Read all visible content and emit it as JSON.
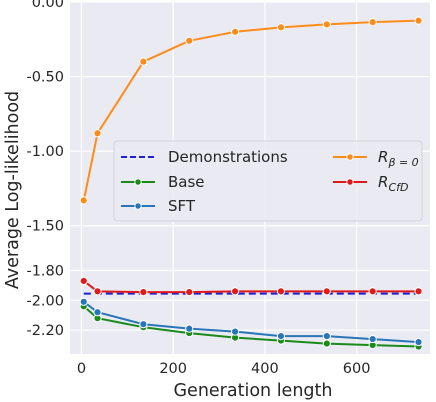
{
  "chart_data": {
    "type": "line",
    "xlabel": "Generation length",
    "ylabel": "Average Log-likelihood",
    "xlim": [
      -25,
      760
    ],
    "ylim": [
      -2.36,
      0.0
    ],
    "xticks": [
      0,
      200,
      400,
      600
    ],
    "yticks": [
      0.0,
      -0.5,
      -1.0,
      -1.5,
      -1.8,
      -2.0,
      -2.2
    ],
    "ytick_labels": [
      "0.00",
      "-0.50",
      "-1.00",
      "-1.50",
      "-1.80",
      "-2.00",
      "-2.20"
    ],
    "grid": true,
    "legend_position": "center-right",
    "background": "#eaeaf2",
    "series": [
      {
        "name": "Demonstrations",
        "color": "#1f1fd6",
        "dashed": true,
        "marker": false,
        "x": [
          5,
          35,
          135,
          235,
          335,
          435,
          535,
          635,
          735
        ],
        "y": [
          -1.955,
          -1.955,
          -1.955,
          -1.955,
          -1.955,
          -1.955,
          -1.955,
          -1.955,
          -1.955
        ]
      },
      {
        "name": "Base",
        "color": "#1a8a1a",
        "dashed": false,
        "marker": true,
        "x": [
          5,
          35,
          135,
          235,
          335,
          435,
          535,
          635,
          735
        ],
        "y": [
          -2.04,
          -2.12,
          -2.18,
          -2.22,
          -2.25,
          -2.27,
          -2.29,
          -2.3,
          -2.31
        ]
      },
      {
        "name": "SFT",
        "color": "#2876b8",
        "dashed": false,
        "marker": true,
        "x": [
          5,
          35,
          135,
          235,
          335,
          435,
          535,
          635,
          735
        ],
        "y": [
          -2.01,
          -2.08,
          -2.16,
          -2.19,
          -2.21,
          -2.24,
          -2.24,
          -2.26,
          -2.28
        ]
      },
      {
        "name": "R_{β=0}",
        "color": "#ff8c1a",
        "dashed": false,
        "marker": true,
        "x": [
          5,
          35,
          135,
          235,
          335,
          435,
          535,
          635,
          735
        ],
        "y": [
          -1.33,
          -0.88,
          -0.4,
          -0.26,
          -0.2,
          -0.17,
          -0.15,
          -0.135,
          -0.125
        ]
      },
      {
        "name": "R_{CfD}",
        "color": "#e01919",
        "dashed": false,
        "marker": true,
        "x": [
          5,
          35,
          135,
          235,
          335,
          435,
          535,
          635,
          735
        ],
        "y": [
          -1.87,
          -1.94,
          -1.945,
          -1.945,
          -1.94,
          -1.94,
          -1.94,
          -1.94,
          -1.94
        ]
      }
    ]
  },
  "legend": {
    "entries": [
      "Demonstrations",
      "Base",
      "SFT"
    ],
    "math_entries": [
      {
        "main": "R",
        "sub": "β = 0"
      },
      {
        "main": "R",
        "sub": "CfD"
      }
    ]
  }
}
